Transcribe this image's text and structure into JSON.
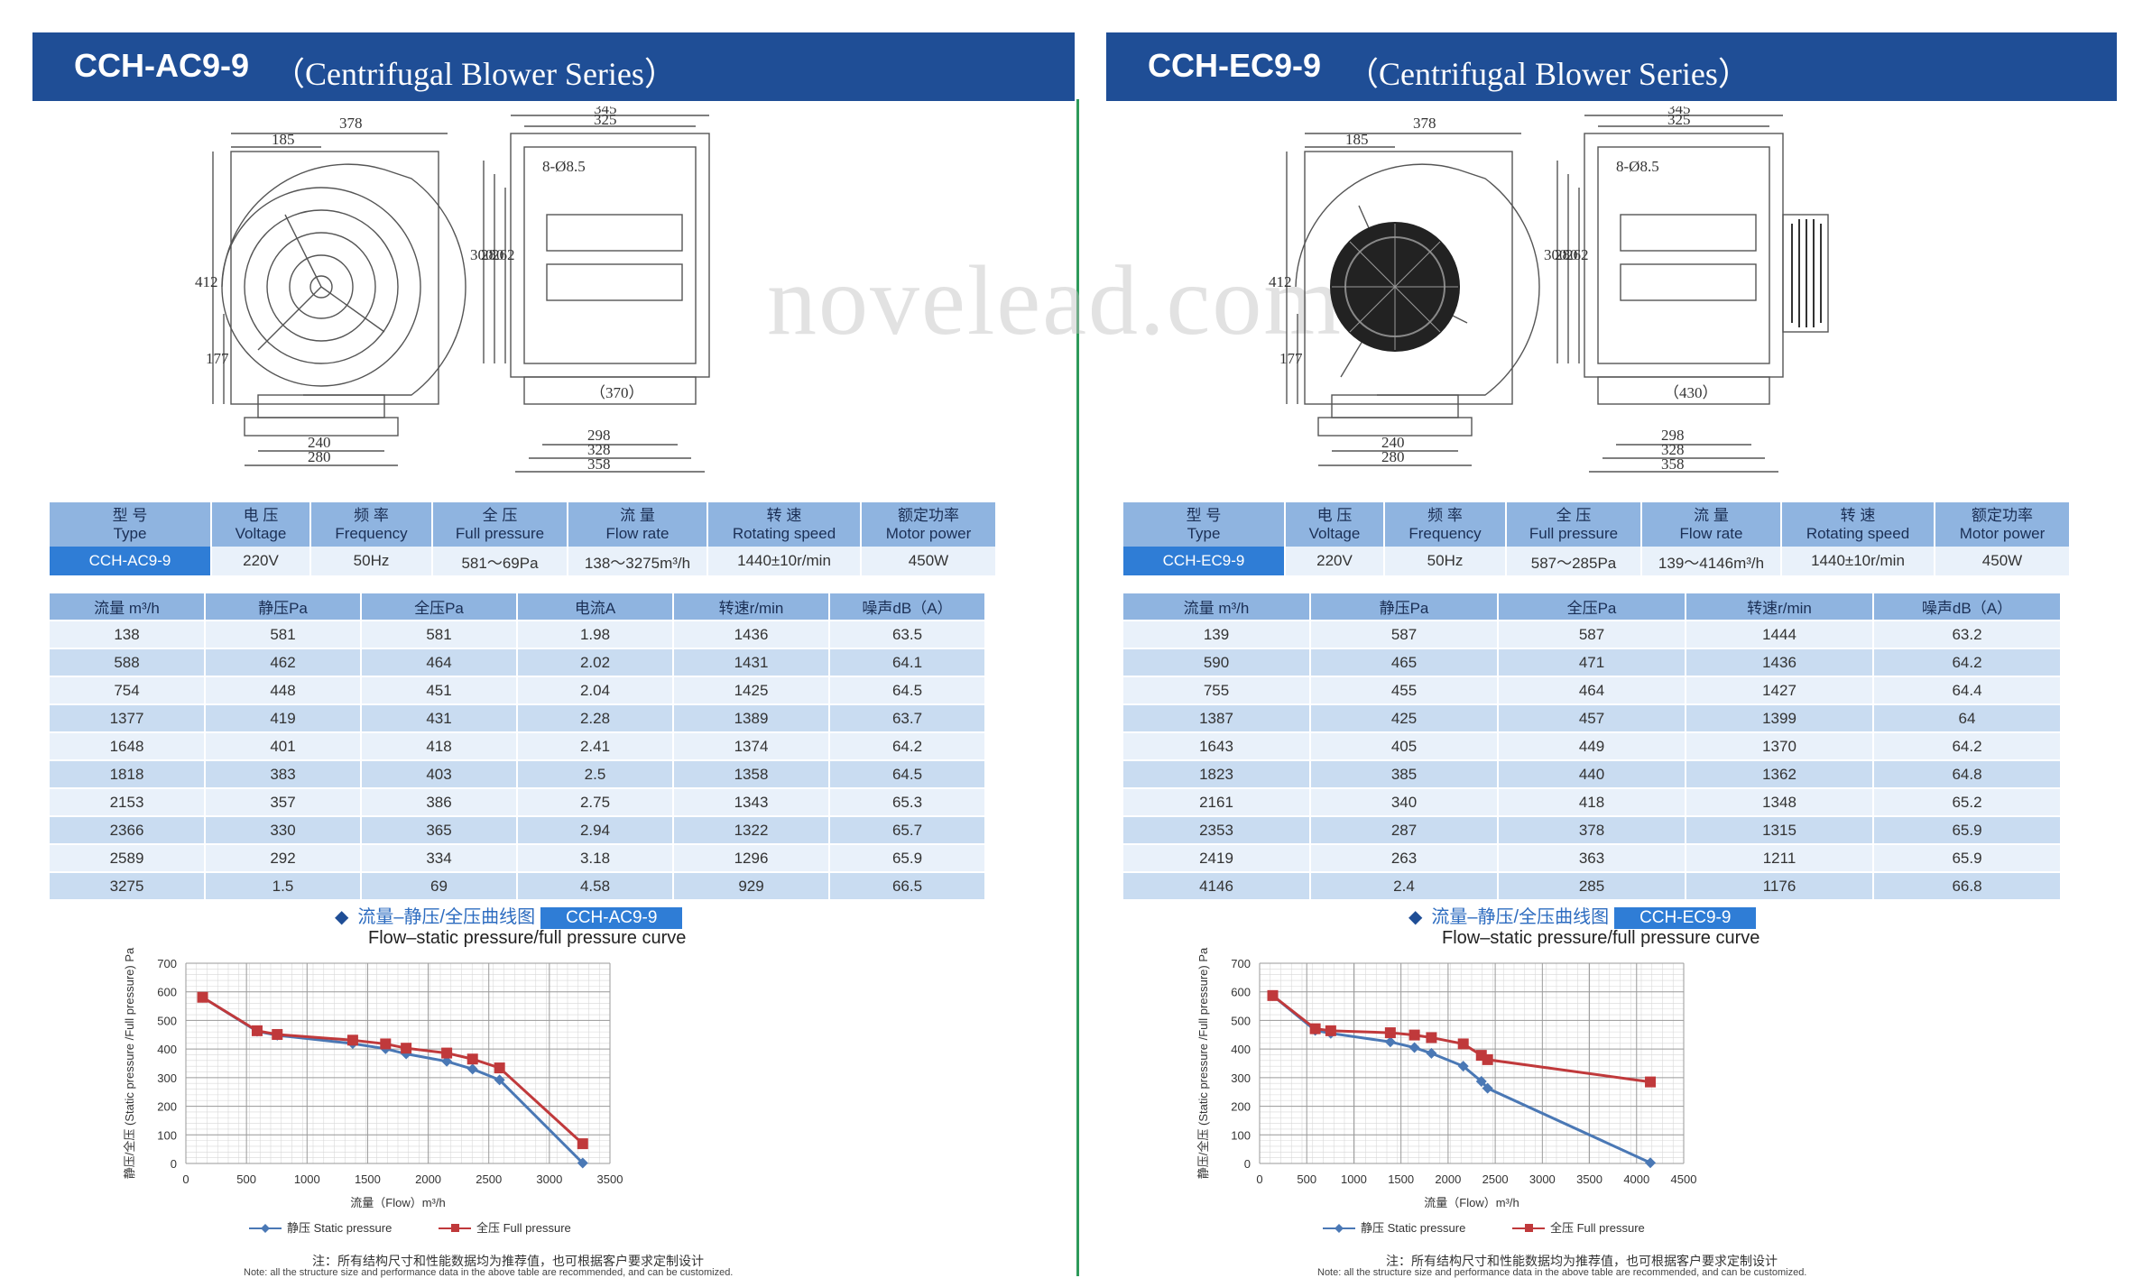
{
  "watermark": "novelead.com",
  "panels": [
    {
      "model": "CCH-AC9-9",
      "series": "（Centrifugal Blower Series）",
      "dims": {
        "front_width": "378",
        "front_offset": "185",
        "front_height": "412",
        "front_lower": "177",
        "base_inner": "240",
        "base_outer": "280",
        "side_outer": "345",
        "side_inner": "325",
        "holes": "8-Ø8.5",
        "h1": "300",
        "h2": "280",
        "h3": "262",
        "motor_len": "（370）",
        "b1": "298",
        "b2": "328",
        "b3": "358"
      },
      "spec": {
        "headers": [
          [
            "型 号",
            "Type"
          ],
          [
            "电 压",
            "Voltage"
          ],
          [
            "频 率",
            "Frequency"
          ],
          [
            "全 压",
            "Full pressure"
          ],
          [
            "流 量",
            "Flow rate"
          ],
          [
            "转 速",
            "Rotating speed"
          ],
          [
            "额定功率",
            "Motor power"
          ]
        ],
        "values": [
          "CCH-AC9-9",
          "220V",
          "50Hz",
          "581～69Pa",
          "138～3275m³/h",
          "1440±10r/min",
          "450W"
        ]
      },
      "perf": {
        "headers": [
          "流量 m³/h",
          "静压Pa",
          "全压Pa",
          "电流A",
          "转速r/min",
          "噪声dB（A）"
        ],
        "rows": [
          [
            "138",
            "581",
            "581",
            "1.98",
            "1436",
            "63.5"
          ],
          [
            "588",
            "462",
            "464",
            "2.02",
            "1431",
            "64.1"
          ],
          [
            "754",
            "448",
            "451",
            "2.04",
            "1425",
            "64.5"
          ],
          [
            "1377",
            "419",
            "431",
            "2.28",
            "1389",
            "63.7"
          ],
          [
            "1648",
            "401",
            "418",
            "2.41",
            "1374",
            "64.2"
          ],
          [
            "1818",
            "383",
            "403",
            "2.5",
            "1358",
            "64.5"
          ],
          [
            "2153",
            "357",
            "386",
            "2.75",
            "1343",
            "65.3"
          ],
          [
            "2366",
            "330",
            "365",
            "2.94",
            "1322",
            "65.7"
          ],
          [
            "2589",
            "292",
            "334",
            "3.18",
            "1296",
            "65.9"
          ],
          [
            "3275",
            "1.5",
            "69",
            "4.58",
            "929",
            "66.5"
          ]
        ]
      },
      "curve_title": "流量–静压/全压曲线图",
      "curve_tag": "CCH-AC9-9",
      "curve_subtitle": "Flow–static pressure/full pressure curve",
      "note_cn": "注：所有结构尺寸和性能数据均为推荐值，也可根据客户要求定制设计",
      "note_en": "Note: all the structure size and performance data in the above table are recommended, and can be customized."
    },
    {
      "model": "CCH-EC9-9",
      "series": "（Centrifugal Blower Series）",
      "dims": {
        "front_width": "378",
        "front_offset": "185",
        "front_height": "412",
        "front_lower": "177",
        "base_inner": "240",
        "base_outer": "280",
        "side_outer": "345",
        "side_inner": "325",
        "holes": "8-Ø8.5",
        "h1": "300",
        "h2": "280",
        "h3": "262",
        "motor_len": "（430）",
        "b1": "298",
        "b2": "328",
        "b3": "358"
      },
      "spec": {
        "headers": [
          [
            "型 号",
            "Type"
          ],
          [
            "电 压",
            "Voltage"
          ],
          [
            "频 率",
            "Frequency"
          ],
          [
            "全 压",
            "Full pressure"
          ],
          [
            "流 量",
            "Flow rate"
          ],
          [
            "转 速",
            "Rotating speed"
          ],
          [
            "额定功率",
            "Motor power"
          ]
        ],
        "values": [
          "CCH-EC9-9",
          "220V",
          "50Hz",
          "587～285Pa",
          "139～4146m³/h",
          "1440±10r/min",
          "450W"
        ]
      },
      "perf": {
        "headers": [
          "流量 m³/h",
          "静压Pa",
          "全压Pa",
          "转速r/min",
          "噪声dB（A）"
        ],
        "rows": [
          [
            "139",
            "587",
            "587",
            "1444",
            "63.2"
          ],
          [
            "590",
            "465",
            "471",
            "1436",
            "64.2"
          ],
          [
            "755",
            "455",
            "464",
            "1427",
            "64.4"
          ],
          [
            "1387",
            "425",
            "457",
            "1399",
            "64"
          ],
          [
            "1643",
            "405",
            "449",
            "1370",
            "64.2"
          ],
          [
            "1823",
            "385",
            "440",
            "1362",
            "64.8"
          ],
          [
            "2161",
            "340",
            "418",
            "1348",
            "65.2"
          ],
          [
            "2353",
            "287",
            "378",
            "1315",
            "65.9"
          ],
          [
            "2419",
            "263",
            "363",
            "1211",
            "65.9"
          ],
          [
            "4146",
            "2.4",
            "285",
            "1176",
            "66.8"
          ]
        ]
      },
      "curve_title": "流量–静压/全压曲线图",
      "curve_tag": "CCH-EC9-9",
      "curve_subtitle": "Flow–static pressure/full pressure curve",
      "note_cn": "注：所有结构尺寸和性能数据均为推荐值，也可根据客户要求定制设计",
      "note_en": "Note: all the structure size and performance data in the above table are recommended, and can be customized."
    }
  ],
  "chart_data": [
    {
      "type": "line",
      "xlabel": "流量（Flow）m³/h",
      "ylabel": "静压/全压 (Static pressure /Full pressure) Pa",
      "xlim": [
        0,
        3500
      ],
      "ylim": [
        0,
        700
      ],
      "xticks": [
        0,
        500,
        1000,
        1500,
        2000,
        2500,
        3000,
        3500
      ],
      "yticks": [
        0,
        100,
        200,
        300,
        400,
        500,
        600,
        700
      ],
      "grid": true,
      "legend": "bottom",
      "series": [
        {
          "name": "静压 Static pressure",
          "color": "#4a78b5",
          "marker": "diamond",
          "x": [
            138,
            588,
            754,
            1377,
            1648,
            1818,
            2153,
            2366,
            2589,
            3275
          ],
          "y": [
            581,
            462,
            448,
            419,
            401,
            383,
            357,
            330,
            292,
            1.5
          ]
        },
        {
          "name": "全压 Full pressure",
          "color": "#c0393b",
          "marker": "square",
          "x": [
            138,
            588,
            754,
            1377,
            1648,
            1818,
            2153,
            2366,
            2589,
            3275
          ],
          "y": [
            581,
            464,
            451,
            431,
            418,
            403,
            386,
            365,
            334,
            69
          ]
        }
      ]
    },
    {
      "type": "line",
      "xlabel": "流量（Flow）m³/h",
      "ylabel": "静压/全压 (Static pressure /Full pressure) Pa",
      "xlim": [
        0,
        4500
      ],
      "ylim": [
        0,
        700
      ],
      "xticks": [
        0,
        500,
        1000,
        1500,
        2000,
        2500,
        3000,
        3500,
        4000,
        4500
      ],
      "yticks": [
        0,
        100,
        200,
        300,
        400,
        500,
        600,
        700
      ],
      "grid": true,
      "legend": "bottom",
      "series": [
        {
          "name": "静压 Static pressure",
          "color": "#4a78b5",
          "marker": "diamond",
          "x": [
            139,
            590,
            755,
            1387,
            1643,
            1823,
            2161,
            2353,
            2419,
            4146
          ],
          "y": [
            587,
            465,
            455,
            425,
            405,
            385,
            340,
            287,
            263,
            2.4
          ]
        },
        {
          "name": "全压 Full pressure",
          "color": "#c0393b",
          "marker": "square",
          "x": [
            139,
            590,
            755,
            1387,
            1643,
            1823,
            2161,
            2353,
            2419,
            4146
          ],
          "y": [
            587,
            471,
            464,
            457,
            449,
            440,
            418,
            378,
            363,
            285
          ]
        }
      ]
    }
  ]
}
